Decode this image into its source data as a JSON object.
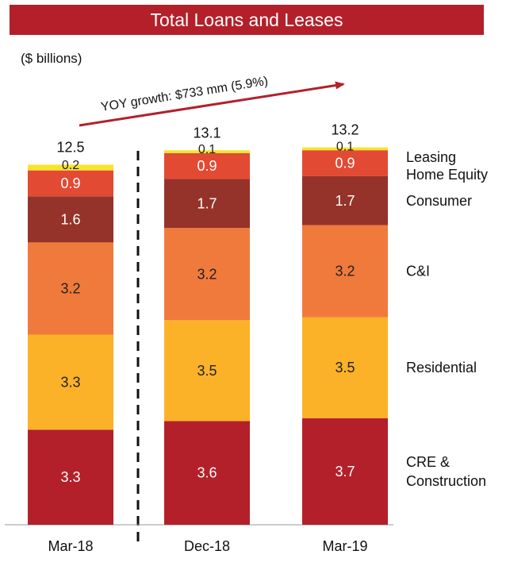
{
  "banner": {
    "title": "Total Loans and Leases"
  },
  "chart_data": {
    "type": "bar",
    "stacked": true,
    "units_label": "($ billions)",
    "annotation": "YOY growth:  $733 mm (5.9%)",
    "categories": [
      "Mar-18",
      "Dec-18",
      "Mar-19"
    ],
    "totals": [
      "12.5",
      "13.1",
      "13.2"
    ],
    "series": [
      {
        "name": "CRE & Construction",
        "legend_lines": [
          "CRE &",
          "Construction"
        ],
        "values": [
          3.3,
          3.6,
          3.7
        ],
        "labels": [
          "3.3",
          "3.6",
          "3.7"
        ],
        "color": "#b3202a",
        "text_color": "#ffffff"
      },
      {
        "name": "Residential",
        "legend_lines": [
          "Residential"
        ],
        "values": [
          3.3,
          3.5,
          3.5
        ],
        "labels": [
          "3.3",
          "3.5",
          "3.5"
        ],
        "color": "#fbb228",
        "text_color": "#222222"
      },
      {
        "name": "C&I",
        "legend_lines": [
          "C&I"
        ],
        "values": [
          3.2,
          3.2,
          3.2
        ],
        "labels": [
          "3.2",
          "3.2",
          "3.2"
        ],
        "color": "#f07a3c",
        "text_color": "#222222"
      },
      {
        "name": "Consumer",
        "legend_lines": [
          "Consumer"
        ],
        "values": [
          1.6,
          1.7,
          1.7
        ],
        "labels": [
          "1.6",
          "1.7",
          "1.7"
        ],
        "color": "#95332a",
        "text_color": "#ffffff"
      },
      {
        "name": "Home Equity",
        "legend_lines": [
          "Home Equity"
        ],
        "values": [
          0.9,
          0.9,
          0.9
        ],
        "labels": [
          "0.9",
          "0.9",
          "0.9"
        ],
        "color": "#e24a33",
        "text_color": "#ffffff"
      },
      {
        "name": "Leasing",
        "legend_lines": [
          "Leasing"
        ],
        "values": [
          0.2,
          0.1,
          0.1
        ],
        "labels": [
          "0.2",
          "0.1",
          "0.1"
        ],
        "color": "#f7e52c",
        "text_color": "#222222"
      }
    ],
    "ylim": [
      0,
      13.2
    ],
    "grid": false,
    "legend": "right",
    "divider": "dashed line between Mar-18 and Dec-18"
  }
}
